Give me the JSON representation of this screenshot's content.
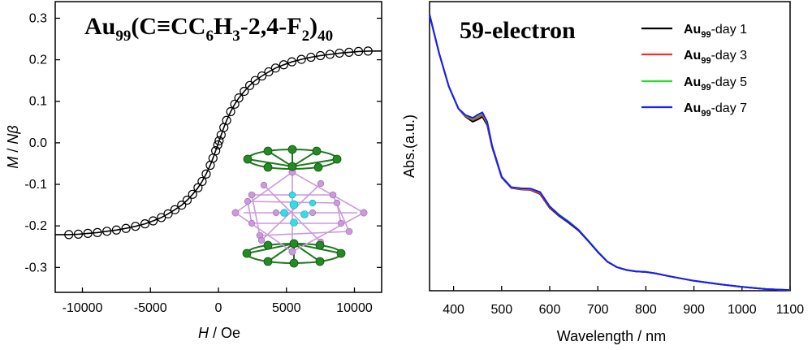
{
  "chart_data": [
    {
      "type": "scatter",
      "title": "Au99(C≡CC6H3-2,4-F2)40",
      "title_parts": {
        "base": "Au",
        "sub1": "99",
        "mid": "(C≡CC",
        "sub2": "6",
        "mid2": "H",
        "sub3": "3",
        "mid3": "-2,4-F",
        "sub4": "2",
        "end": ")",
        "sub5": "40"
      },
      "xlabel": {
        "var": "H",
        "unit": " / Oe"
      },
      "ylabel": {
        "var1": "M",
        "sep": " / ",
        "var2": "N",
        "var3": "β"
      },
      "xlim": [
        -12000,
        12000
      ],
      "ylim": [
        -0.36,
        0.34
      ],
      "xticks": [
        -10000,
        -5000,
        0,
        5000,
        10000
      ],
      "xtick_labels": [
        "-10000",
        "-5000",
        "0",
        "5000",
        "10000"
      ],
      "yticks": [
        -0.3,
        -0.2,
        -0.1,
        0.0,
        0.1,
        0.2,
        0.3
      ],
      "ytick_labels": [
        "-0.3",
        "-0.2",
        "-0.1",
        "0.0",
        "0.1",
        "0.2",
        "0.3"
      ],
      "marker": "open-circle",
      "inset": "cluster-structure",
      "x": [
        -11000,
        -10300,
        -9600,
        -8900,
        -8200,
        -7500,
        -6800,
        -6100,
        -5400,
        -4800,
        -4200,
        -3700,
        -3200,
        -2700,
        -2300,
        -1900,
        -1500,
        -1200,
        -900,
        -600,
        -400,
        -200,
        -50,
        50,
        200,
        400,
        600,
        900,
        1200,
        1500,
        1900,
        2300,
        2700,
        3200,
        3700,
        4200,
        4800,
        5400,
        6100,
        6800,
        7500,
        8200,
        8900,
        9600,
        10300,
        11000
      ],
      "y": [
        -0.221,
        -0.22,
        -0.218,
        -0.216,
        -0.213,
        -0.21,
        -0.206,
        -0.201,
        -0.195,
        -0.188,
        -0.18,
        -0.171,
        -0.161,
        -0.15,
        -0.138,
        -0.124,
        -0.108,
        -0.093,
        -0.075,
        -0.054,
        -0.037,
        -0.019,
        -0.005,
        0.005,
        0.019,
        0.037,
        0.054,
        0.075,
        0.093,
        0.108,
        0.124,
        0.138,
        0.15,
        0.161,
        0.171,
        0.18,
        0.188,
        0.195,
        0.201,
        0.206,
        0.21,
        0.213,
        0.216,
        0.218,
        0.22,
        0.221
      ]
    },
    {
      "type": "line",
      "title": "59-electron",
      "xlabel": "Wavelength / nm",
      "ylabel": "Abs.(a.u.)",
      "xlim": [
        350,
        1100
      ],
      "xticks": [
        400,
        500,
        600,
        700,
        800,
        900,
        1000,
        1100
      ],
      "xtick_labels": [
        "400",
        "500",
        "600",
        "700",
        "800",
        "900",
        "1000",
        "1100"
      ],
      "ylim": [
        0,
        1
      ],
      "yticks_shown": false,
      "legend_position": "top-right",
      "legend_name_parts": {
        "base": "Au",
        "sub": "99"
      },
      "series": [
        {
          "name": "Au99-day 1",
          "label_suffix": "-day 1",
          "color": "#000000",
          "x": [
            350,
            370,
            390,
            410,
            425,
            440,
            450,
            460,
            470,
            480,
            500,
            520,
            540,
            560,
            580,
            600,
            620,
            640,
            660,
            680,
            700,
            720,
            740,
            760,
            780,
            800,
            820,
            850,
            900,
            950,
            1000,
            1050,
            1100
          ],
          "y": [
            1.0,
            0.86,
            0.74,
            0.66,
            0.63,
            0.612,
            0.62,
            0.63,
            0.6,
            0.52,
            0.41,
            0.372,
            0.367,
            0.365,
            0.35,
            0.3,
            0.27,
            0.245,
            0.218,
            0.18,
            0.14,
            0.105,
            0.085,
            0.075,
            0.07,
            0.068,
            0.063,
            0.052,
            0.036,
            0.024,
            0.014,
            0.006,
            0.002
          ]
        },
        {
          "name": "Au99-day 3",
          "label_suffix": "-day 3",
          "color": "#ff2a2a",
          "x": [
            350,
            370,
            390,
            410,
            425,
            440,
            450,
            460,
            470,
            480,
            500,
            520,
            540,
            560,
            580,
            600,
            620,
            640,
            660,
            680,
            700,
            720,
            740,
            760,
            780,
            800,
            820,
            850,
            900,
            950,
            1000,
            1050,
            1100
          ],
          "y": [
            1.0,
            0.86,
            0.74,
            0.66,
            0.632,
            0.618,
            0.628,
            0.637,
            0.605,
            0.522,
            0.411,
            0.373,
            0.368,
            0.366,
            0.352,
            0.302,
            0.272,
            0.247,
            0.219,
            0.181,
            0.141,
            0.105,
            0.085,
            0.075,
            0.07,
            0.068,
            0.063,
            0.052,
            0.036,
            0.024,
            0.014,
            0.006,
            0.002
          ]
        },
        {
          "name": "Au99-day 5",
          "label_suffix": "-day 5",
          "color": "#22dd22",
          "x": [
            350,
            370,
            390,
            410,
            425,
            440,
            450,
            460,
            470,
            480,
            500,
            520,
            540,
            560,
            580,
            600,
            620,
            640,
            660,
            680,
            700,
            720,
            740,
            760,
            780,
            800,
            820,
            850,
            900,
            950,
            1000,
            1050,
            1100
          ],
          "y": [
            1.0,
            0.86,
            0.74,
            0.66,
            0.634,
            0.622,
            0.633,
            0.642,
            0.609,
            0.524,
            0.412,
            0.374,
            0.37,
            0.369,
            0.356,
            0.306,
            0.275,
            0.25,
            0.221,
            0.182,
            0.142,
            0.106,
            0.085,
            0.075,
            0.07,
            0.068,
            0.063,
            0.052,
            0.036,
            0.024,
            0.014,
            0.006,
            0.002
          ]
        },
        {
          "name": "Au99-day 7",
          "label_suffix": "-day 7",
          "color": "#1a1aff",
          "x": [
            350,
            370,
            390,
            410,
            425,
            440,
            450,
            460,
            470,
            480,
            500,
            520,
            540,
            560,
            580,
            600,
            620,
            640,
            660,
            680,
            700,
            720,
            740,
            760,
            780,
            800,
            820,
            850,
            900,
            950,
            1000,
            1050,
            1100
          ],
          "y": [
            1.0,
            0.86,
            0.74,
            0.66,
            0.636,
            0.626,
            0.637,
            0.646,
            0.612,
            0.526,
            0.413,
            0.375,
            0.371,
            0.37,
            0.357,
            0.305,
            0.273,
            0.248,
            0.22,
            0.181,
            0.141,
            0.105,
            0.085,
            0.075,
            0.07,
            0.068,
            0.063,
            0.052,
            0.036,
            0.024,
            0.014,
            0.006,
            0.002
          ]
        }
      ]
    }
  ]
}
